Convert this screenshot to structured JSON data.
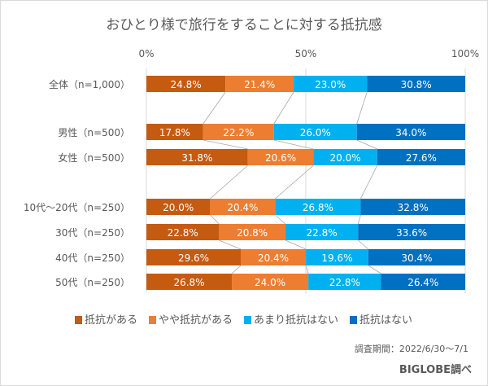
{
  "chart_data": {
    "type": "bar",
    "orientation": "horizontal",
    "stacked": true,
    "percent": true,
    "title": "おひとり様で旅行をすることに対する抵抗感",
    "xlim": [
      0,
      100
    ],
    "x_ticks": [
      "0%",
      "50%",
      "100%"
    ],
    "categories": [
      "全体（n=1,000）",
      "男性（n=500）",
      "女性（n=500）",
      "10代～20代（n=250）",
      "30代（n=250）",
      "40代（n=250）",
      "50代（n=250）"
    ],
    "series": [
      {
        "name": "抵抗がある",
        "color": "#C55A11",
        "values": [
          24.8,
          17.8,
          31.8,
          20.0,
          22.8,
          29.6,
          26.8
        ]
      },
      {
        "name": "やや抵抗がある",
        "color": "#ED7D31",
        "values": [
          21.4,
          22.2,
          20.6,
          20.4,
          20.8,
          20.4,
          24.0
        ]
      },
      {
        "name": "あまり抵抗はない",
        "color": "#00B0F0",
        "values": [
          23.0,
          26.0,
          20.0,
          26.8,
          22.8,
          19.6,
          22.8
        ]
      },
      {
        "name": "抵抗はない",
        "color": "#0070C0",
        "values": [
          30.8,
          34.0,
          27.6,
          32.8,
          33.6,
          30.4,
          26.4
        ]
      }
    ],
    "legend_position": "bottom",
    "grid": "vertical at 0/50/100%"
  },
  "footer": {
    "period": "調査期間：2022/6/30～7/1",
    "source": "BIGLOBE調べ"
  }
}
